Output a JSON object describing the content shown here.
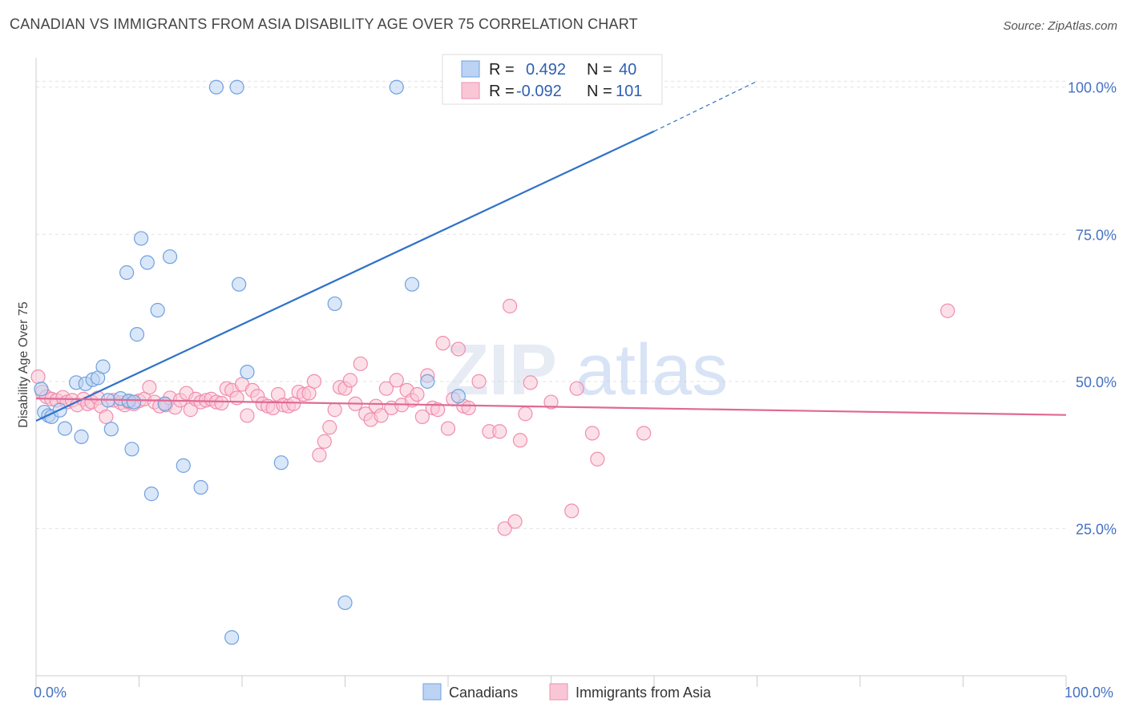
{
  "title": "CANADIAN VS IMMIGRANTS FROM ASIA DISABILITY AGE OVER 75 CORRELATION CHART",
  "source": "Source: ZipAtlas.com",
  "watermark": {
    "zip": "ZIP",
    "atlas": "atlas"
  },
  "colors": {
    "blue": "#6fa1e0",
    "blue_line": "#2f72c8",
    "pink": "#f08db0",
    "pink_line": "#e06994",
    "axis_text": "#4472c4"
  },
  "chart_data": {
    "type": "scatter",
    "title": "CANADIAN VS IMMIGRANTS FROM ASIA DISABILITY AGE OVER 75 CORRELATION CHART",
    "xlabel": "",
    "ylabel": "Disability Age Over 75",
    "xlim": [
      0,
      100
    ],
    "ylim": [
      0,
      105
    ],
    "x_tick_labels": [
      "0.0%",
      "100.0%"
    ],
    "y_ticks": [
      {
        "value": 25,
        "label": "25.0%"
      },
      {
        "value": 50,
        "label": "50.0%"
      },
      {
        "value": 75,
        "label": "75.0%"
      },
      {
        "value": 100,
        "label": "100.0%"
      }
    ],
    "grid": true,
    "legend": {
      "placement": "top-center",
      "entries": [
        {
          "r_label": "R =",
          "r_value": "0.492",
          "n_label": "N =",
          "n_value": "40"
        },
        {
          "r_label": "R =",
          "r_value": "-0.092",
          "n_label": "N =",
          "n_value": "101"
        }
      ]
    },
    "series": [
      {
        "name": "Canadians",
        "trend": {
          "x": [
            0,
            60
          ],
          "y": [
            43.3,
            92.5
          ],
          "dashed_to": [
            70,
            101
          ]
        },
        "points": [
          [
            0.5,
            48.7
          ],
          [
            0.8,
            44.8
          ],
          [
            1.2,
            44.2
          ],
          [
            1.5,
            44.0
          ],
          [
            2.3,
            45.1
          ],
          [
            2.8,
            42.0
          ],
          [
            3.9,
            49.8
          ],
          [
            4.4,
            40.6
          ],
          [
            4.8,
            49.6
          ],
          [
            5.5,
            50.3
          ],
          [
            6.0,
            50.6
          ],
          [
            6.5,
            52.5
          ],
          [
            7.0,
            46.8
          ],
          [
            7.3,
            41.9
          ],
          [
            8.2,
            47.1
          ],
          [
            8.8,
            68.5
          ],
          [
            9.0,
            46.7
          ],
          [
            9.3,
            38.5
          ],
          [
            9.5,
            46.5
          ],
          [
            9.8,
            58.0
          ],
          [
            10.2,
            74.3
          ],
          [
            10.8,
            70.2
          ],
          [
            11.2,
            30.9
          ],
          [
            11.8,
            62.1
          ],
          [
            12.5,
            46.2
          ],
          [
            13.0,
            71.2
          ],
          [
            14.3,
            35.7
          ],
          [
            16.0,
            32.0
          ],
          [
            17.5,
            100.0
          ],
          [
            19.0,
            6.5
          ],
          [
            19.5,
            100.0
          ],
          [
            19.7,
            66.5
          ],
          [
            20.5,
            51.6
          ],
          [
            23.8,
            36.2
          ],
          [
            29.0,
            63.2
          ],
          [
            30.0,
            12.4
          ],
          [
            35.0,
            100.0
          ],
          [
            36.5,
            66.5
          ],
          [
            38.0,
            50.0
          ],
          [
            41.0,
            47.5
          ]
        ]
      },
      {
        "name": "Immigrants from Asia",
        "trend": {
          "x": [
            0,
            100
          ],
          "y": [
            47.1,
            44.3
          ]
        },
        "points": [
          [
            0.2,
            50.8
          ],
          [
            0.6,
            48.2
          ],
          [
            1.0,
            47.4
          ],
          [
            1.5,
            47.0
          ],
          [
            2.0,
            46.8
          ],
          [
            2.6,
            47.3
          ],
          [
            3.0,
            46.5
          ],
          [
            3.5,
            46.8
          ],
          [
            4.0,
            46.0
          ],
          [
            4.6,
            47.0
          ],
          [
            5.0,
            46.2
          ],
          [
            5.4,
            46.5
          ],
          [
            6.0,
            47.2
          ],
          [
            6.3,
            45.8
          ],
          [
            6.8,
            44.0
          ],
          [
            7.5,
            46.8
          ],
          [
            8.2,
            46.4
          ],
          [
            8.6,
            46.0
          ],
          [
            9.0,
            46.5
          ],
          [
            9.5,
            46.2
          ],
          [
            10.0,
            46.7
          ],
          [
            10.5,
            47.0
          ],
          [
            11.0,
            49.0
          ],
          [
            11.5,
            46.5
          ],
          [
            12.0,
            45.8
          ],
          [
            12.6,
            46.0
          ],
          [
            13.0,
            47.2
          ],
          [
            13.5,
            45.6
          ],
          [
            14.0,
            46.8
          ],
          [
            14.6,
            48.0
          ],
          [
            15.0,
            45.2
          ],
          [
            15.5,
            47.0
          ],
          [
            16.0,
            46.5
          ],
          [
            16.5,
            46.8
          ],
          [
            17.0,
            47.0
          ],
          [
            17.5,
            46.5
          ],
          [
            18.0,
            46.3
          ],
          [
            18.5,
            48.8
          ],
          [
            19.0,
            48.5
          ],
          [
            19.5,
            47.2
          ],
          [
            20.0,
            49.5
          ],
          [
            20.5,
            44.2
          ],
          [
            21.0,
            48.5
          ],
          [
            21.5,
            47.5
          ],
          [
            22.0,
            46.2
          ],
          [
            22.5,
            45.8
          ],
          [
            23.0,
            45.5
          ],
          [
            23.5,
            47.8
          ],
          [
            24.0,
            46.0
          ],
          [
            24.5,
            45.8
          ],
          [
            25.0,
            46.2
          ],
          [
            25.5,
            48.2
          ],
          [
            26.0,
            47.8
          ],
          [
            26.5,
            48.0
          ],
          [
            27.0,
            50.0
          ],
          [
            27.5,
            37.5
          ],
          [
            28.0,
            39.8
          ],
          [
            28.5,
            42.2
          ],
          [
            29.0,
            45.2
          ],
          [
            29.5,
            49.0
          ],
          [
            30.0,
            48.8
          ],
          [
            30.5,
            50.2
          ],
          [
            31.0,
            46.2
          ],
          [
            31.5,
            53.0
          ],
          [
            32.0,
            44.5
          ],
          [
            32.5,
            43.5
          ],
          [
            33.0,
            45.8
          ],
          [
            33.5,
            44.2
          ],
          [
            34.0,
            48.8
          ],
          [
            34.5,
            45.5
          ],
          [
            35.0,
            50.2
          ],
          [
            35.5,
            46.0
          ],
          [
            36.0,
            48.5
          ],
          [
            36.5,
            46.8
          ],
          [
            37.0,
            47.8
          ],
          [
            37.5,
            44.0
          ],
          [
            38.0,
            51.0
          ],
          [
            38.5,
            45.5
          ],
          [
            39.0,
            45.2
          ],
          [
            39.5,
            56.5
          ],
          [
            40.0,
            42.0
          ],
          [
            40.5,
            47.0
          ],
          [
            41.0,
            55.5
          ],
          [
            41.5,
            45.8
          ],
          [
            42.0,
            45.5
          ],
          [
            43.0,
            50.0
          ],
          [
            44.0,
            41.5
          ],
          [
            45.0,
            41.5
          ],
          [
            45.5,
            25.0
          ],
          [
            46.0,
            62.8
          ],
          [
            46.5,
            26.2
          ],
          [
            47.0,
            40.0
          ],
          [
            47.5,
            44.5
          ],
          [
            48.0,
            49.8
          ],
          [
            50.0,
            46.5
          ],
          [
            52.0,
            28.0
          ],
          [
            52.5,
            48.8
          ],
          [
            54.0,
            41.2
          ],
          [
            54.5,
            36.8
          ],
          [
            59.0,
            41.2
          ],
          [
            88.5,
            62.0
          ]
        ]
      }
    ]
  }
}
